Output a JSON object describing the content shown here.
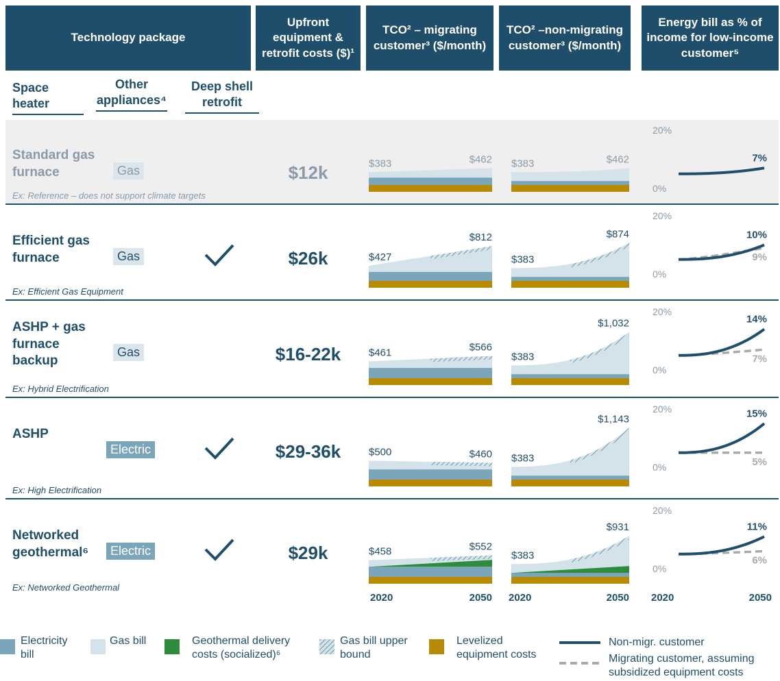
{
  "header": {
    "technology_package": "Technology package",
    "upfront": "Upfront equipment & retrofit costs ($)¹",
    "tco_migrating": "TCO² – migrating customer³ ($/month)",
    "tco_non_migrating": "TCO² –non-migrating customer³ ($/month)",
    "energy_bill": "Energy bill as % of income for low-income customer⁵"
  },
  "subheaders": {
    "space_heater": "Space heater",
    "other_appliances": "Other appliances⁴",
    "deep_shell_retrofit": "Deep shell retrofit"
  },
  "rows": [
    {
      "name": "Standard gas furnace",
      "appliance": "Gas",
      "retrofit": false,
      "upfront_cost": "$12k",
      "example": "Ex: Reference – does not support climate targets",
      "muted": true,
      "tco_migrating": {
        "values": [
          383,
          462
        ],
        "value_labels": [
          "$383",
          "$462"
        ]
      },
      "tco_non_migrating": {
        "values": [
          383,
          462
        ],
        "value_labels": [
          "$383",
          "$462"
        ]
      },
      "energy_bill": {
        "series": [
          {
            "color": "#1f4e6b",
            "dash": false,
            "values": [
              5,
              7
            ],
            "end_label": "7%"
          }
        ]
      }
    },
    {
      "name": "Efficient gas furnace",
      "appliance": "Gas",
      "retrofit": true,
      "upfront_cost": "$26k",
      "example": "Ex: Efficient Gas Equipment",
      "tco_migrating": {
        "values": [
          427,
          812
        ],
        "value_labels": [
          "$427",
          "$812"
        ]
      },
      "tco_non_migrating": {
        "values": [
          383,
          874
        ],
        "value_labels": [
          "$383",
          "$874"
        ]
      },
      "energy_bill": {
        "series": [
          {
            "color": "#1f4e6b",
            "dash": false,
            "values": [
              5,
              10
            ],
            "end_label": "10%"
          },
          {
            "color": "#aaaaaa",
            "dash": true,
            "values": [
              5,
              9
            ],
            "end_label": "9%"
          }
        ]
      }
    },
    {
      "name": "ASHP + gas furnace backup",
      "appliance": "Gas",
      "retrofit": false,
      "upfront_cost": "$16-22k",
      "example": "Ex: Hybrid Electrification",
      "tco_migrating": {
        "values": [
          461,
          566
        ],
        "value_labels": [
          "$461",
          "$566"
        ]
      },
      "tco_non_migrating": {
        "values": [
          383,
          1032
        ],
        "value_labels": [
          "$383",
          "$1,032"
        ]
      },
      "energy_bill": {
        "series": [
          {
            "color": "#1f4e6b",
            "dash": false,
            "values": [
              5,
              14
            ],
            "end_label": "14%"
          },
          {
            "color": "#aaaaaa",
            "dash": true,
            "values": [
              5,
              7
            ],
            "end_label": "7%"
          }
        ]
      }
    },
    {
      "name": "ASHP",
      "appliance": "Electric",
      "retrofit": true,
      "upfront_cost": "$29-36k",
      "example": "Ex: High Electrification",
      "tco_migrating": {
        "values": [
          500,
          460
        ],
        "value_labels": [
          "$500",
          "$460"
        ]
      },
      "tco_non_migrating": {
        "values": [
          383,
          1143
        ],
        "value_labels": [
          "$383",
          "$1,143"
        ]
      },
      "energy_bill": {
        "series": [
          {
            "color": "#1f4e6b",
            "dash": false,
            "values": [
              5,
              15
            ],
            "end_label": "15%"
          },
          {
            "color": "#aaaaaa",
            "dash": true,
            "values": [
              5,
              5
            ],
            "end_label": "5%"
          }
        ]
      }
    },
    {
      "name": "Networked geothermal⁶",
      "appliance": "Electric",
      "retrofit": true,
      "upfront_cost": "$29k",
      "example": "Ex: Networked Geothermal",
      "geothermal": true,
      "tco_migrating": {
        "values": [
          458,
          552
        ],
        "value_labels": [
          "$458",
          "$552"
        ]
      },
      "tco_non_migrating": {
        "values": [
          383,
          931
        ],
        "value_labels": [
          "$383",
          "$931"
        ]
      },
      "energy_bill": {
        "series": [
          {
            "color": "#1f4e6b",
            "dash": false,
            "values": [
              5,
              11
            ],
            "end_label": "11%"
          },
          {
            "color": "#aaaaaa",
            "dash": true,
            "values": [
              5,
              6
            ],
            "end_label": "6%"
          }
        ]
      }
    }
  ],
  "years": [
    "2020",
    "2050"
  ],
  "bill_axis": {
    "ylim": [
      0,
      20
    ],
    "yticks": [
      {
        "value": 0,
        "label": "0%"
      },
      {
        "value": 20,
        "label": "20%"
      }
    ]
  },
  "legend": [
    {
      "name": "Electricity bill",
      "color": "#7ba6ba"
    },
    {
      "name": "Gas bill",
      "color": "#d4e3ea"
    },
    {
      "name": "Geothermal delivery costs (socialized)⁶",
      "color": "#2e8b3e"
    },
    {
      "name": "Gas bill upper bound",
      "color": "hatch"
    },
    {
      "name": "Levelized equipment costs",
      "color": "#b88a00"
    },
    {
      "name": "Non-migr. customer",
      "color": "#1f4e6b"
    },
    {
      "name": "Migrating customer, assuming subsidized equipment costs",
      "color": "#aaaaaa"
    }
  ]
}
